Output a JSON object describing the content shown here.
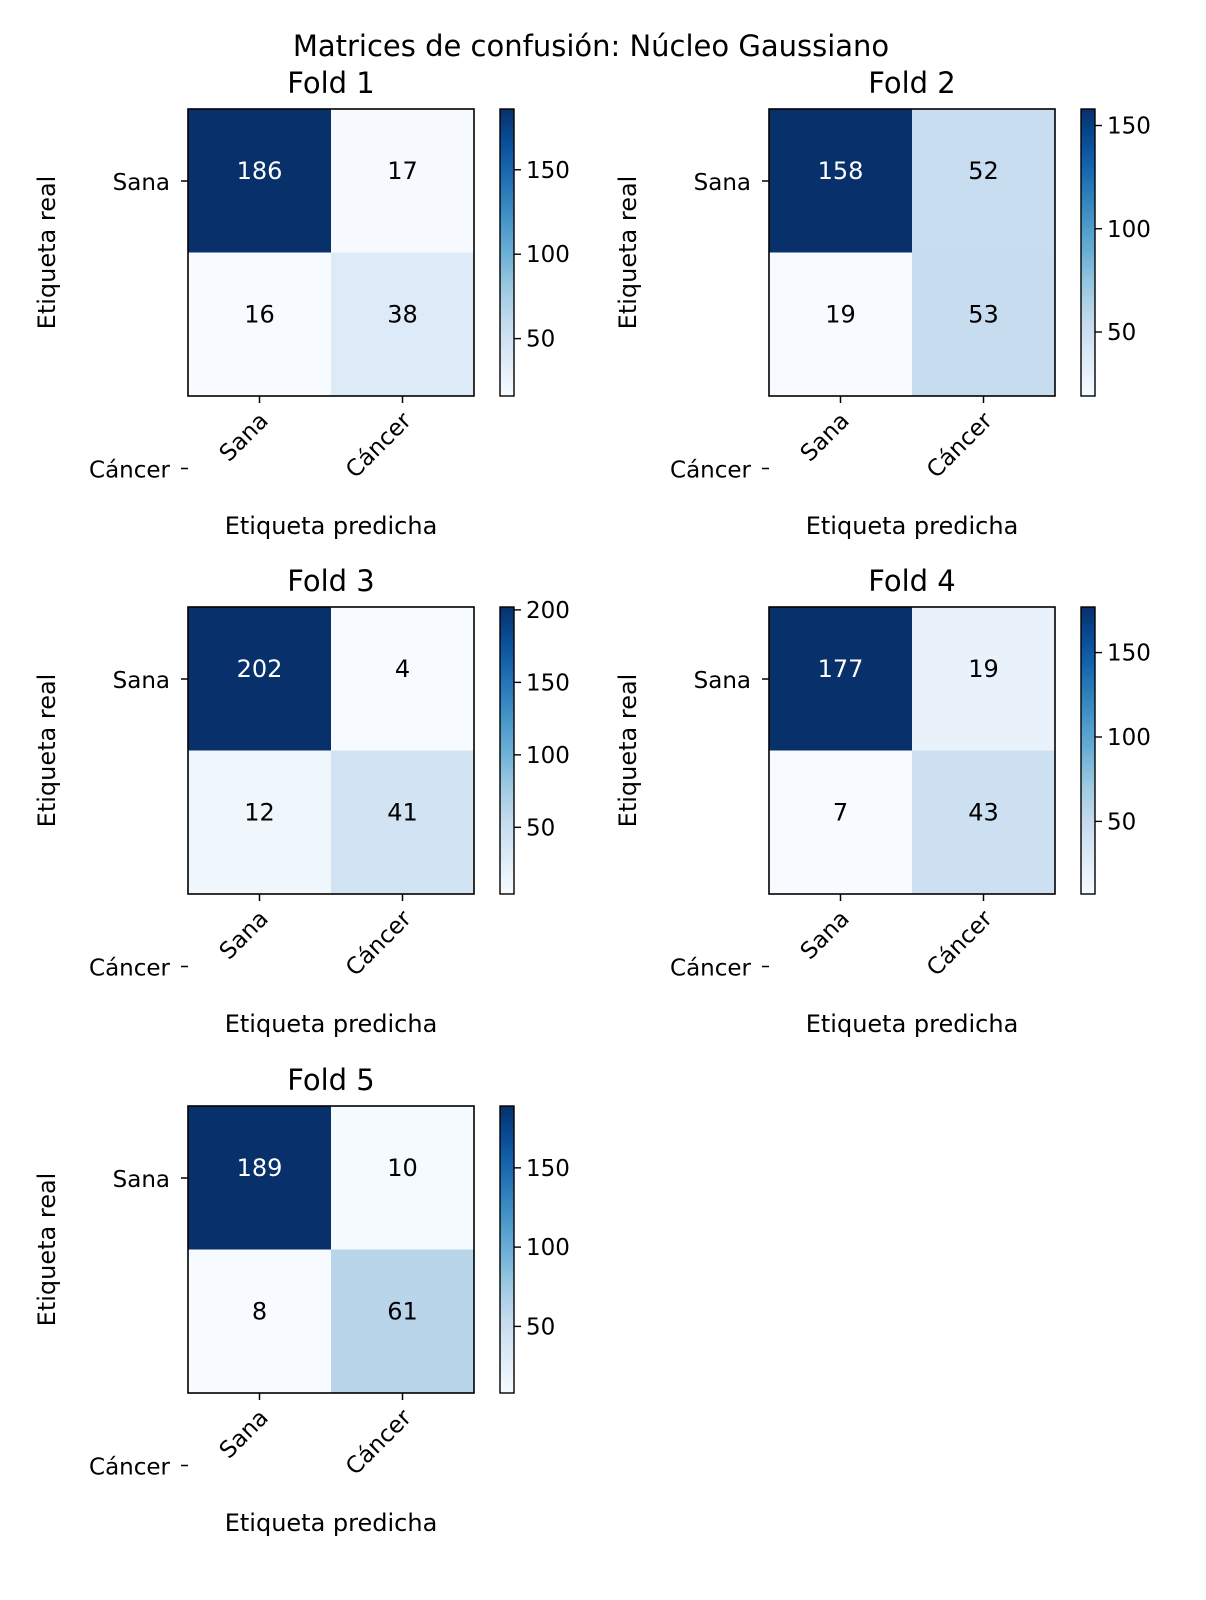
{
  "figure": {
    "suptitle": "Matrices de confusión: Núcleo Gaussiano"
  },
  "chart_data": [
    {
      "type": "heatmap",
      "title": "Fold 1",
      "xlabel": "Etiqueta predicha",
      "ylabel": "Etiqueta real",
      "x_categories": [
        "Sana",
        "Cáncer"
      ],
      "y_categories": [
        "Sana",
        "Cáncer"
      ],
      "values": [
        [
          186,
          17
        ],
        [
          16,
          38
        ]
      ],
      "colorbar": {
        "range": [
          16,
          186
        ],
        "ticks": [
          50,
          100,
          150
        ]
      }
    },
    {
      "type": "heatmap",
      "title": "Fold 2",
      "xlabel": "Etiqueta predicha",
      "ylabel": "Etiqueta real",
      "x_categories": [
        "Sana",
        "Cáncer"
      ],
      "y_categories": [
        "Sana",
        "Cáncer"
      ],
      "values": [
        [
          158,
          52
        ],
        [
          19,
          53
        ]
      ],
      "colorbar": {
        "range": [
          19,
          158
        ],
        "ticks": [
          50,
          100,
          150
        ]
      }
    },
    {
      "type": "heatmap",
      "title": "Fold 3",
      "xlabel": "Etiqueta predicha",
      "ylabel": "Etiqueta real",
      "x_categories": [
        "Sana",
        "Cáncer"
      ],
      "y_categories": [
        "Sana",
        "Cáncer"
      ],
      "values": [
        [
          202,
          4
        ],
        [
          12,
          41
        ]
      ],
      "colorbar": {
        "range": [
          4,
          202
        ],
        "ticks": [
          50,
          100,
          150,
          200
        ]
      }
    },
    {
      "type": "heatmap",
      "title": "Fold 4",
      "xlabel": "Etiqueta predicha",
      "ylabel": "Etiqueta real",
      "x_categories": [
        "Sana",
        "Cáncer"
      ],
      "y_categories": [
        "Sana",
        "Cáncer"
      ],
      "values": [
        [
          177,
          19
        ],
        [
          7,
          43
        ]
      ],
      "colorbar": {
        "range": [
          7,
          177
        ],
        "ticks": [
          50,
          100,
          150
        ]
      }
    },
    {
      "type": "heatmap",
      "title": "Fold 5",
      "xlabel": "Etiqueta predicha",
      "ylabel": "Etiqueta real",
      "x_categories": [
        "Sana",
        "Cáncer"
      ],
      "y_categories": [
        "Sana",
        "Cáncer"
      ],
      "values": [
        [
          189,
          10
        ],
        [
          8,
          61
        ]
      ],
      "colorbar": {
        "range": [
          8,
          189
        ],
        "ticks": [
          50,
          100,
          150
        ]
      }
    }
  ],
  "colormap": {
    "name": "Blues",
    "stops": [
      "#f7fbff",
      "#deebf7",
      "#c6dbef",
      "#9ecae1",
      "#6baed6",
      "#4292c6",
      "#2171b5",
      "#08519c",
      "#08306b"
    ]
  }
}
